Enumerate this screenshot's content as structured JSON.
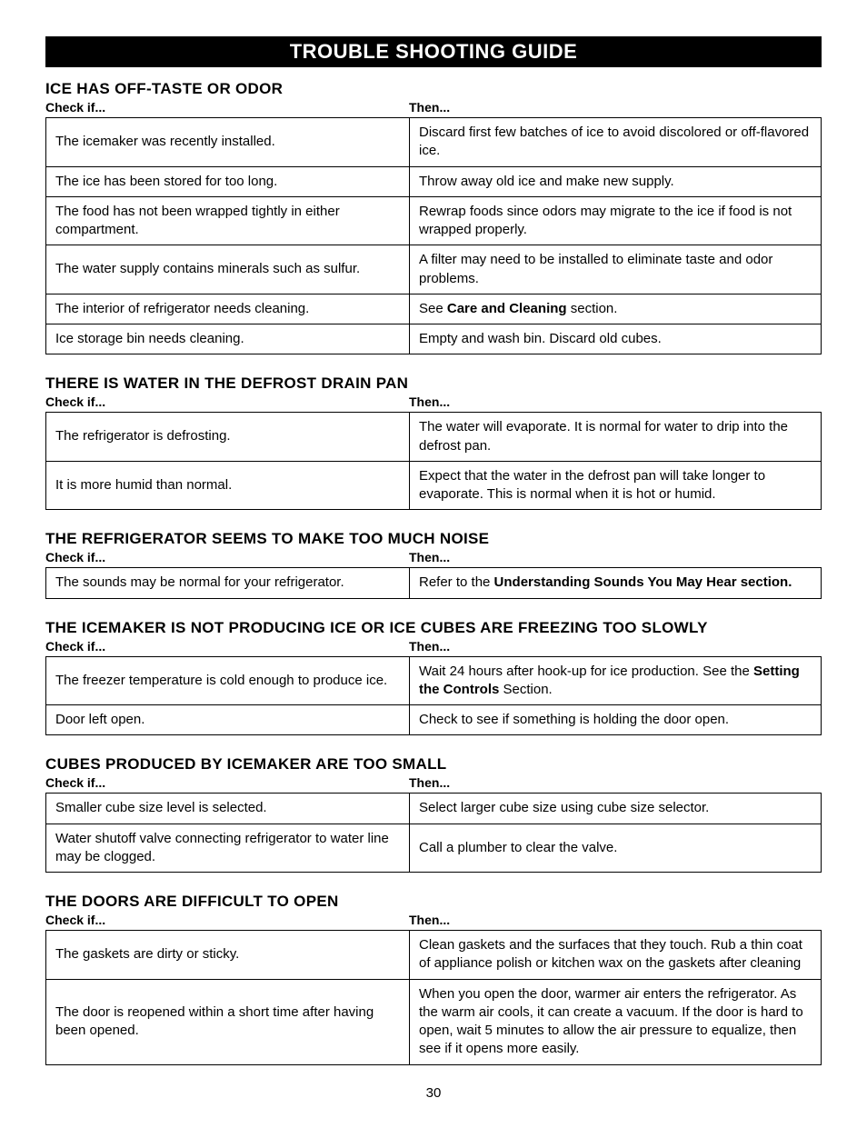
{
  "banner_title": "TROUBLE SHOOTING GUIDE",
  "col_header_left": "Check if...",
  "col_header_right": "Then...",
  "page_number": "30",
  "sections": [
    {
      "title": "ICE HAS OFF-TASTE OR ODOR",
      "rows": [
        {
          "check": "The icemaker was recently installed.",
          "then": "Discard first few batches of ice to avoid discolored or off-flavored ice."
        },
        {
          "check": "The ice has been stored for too long.",
          "then": "Throw away old ice and make new supply."
        },
        {
          "check": "The food has not been wrapped tightly in either compartment.",
          "then": "Rewrap foods since odors may migrate to the ice if food is not wrapped properly."
        },
        {
          "check": "The water supply contains minerals such as sulfur.",
          "then": "A filter may need to be installed to eliminate taste and odor problems."
        },
        {
          "check": "The interior of refrigerator needs cleaning.",
          "then_html": "See <b>Care and Cleaning</b> section."
        },
        {
          "check": "Ice storage bin needs cleaning.",
          "then": "Empty and wash bin. Discard old cubes."
        }
      ]
    },
    {
      "title": "THERE IS WATER IN THE DEFROST DRAIN PAN",
      "rows": [
        {
          "check": "The refrigerator is defrosting.",
          "then": "The water will evaporate. It is normal for water to drip into the defrost pan."
        },
        {
          "check": "It is more humid than normal.",
          "then": "Expect that the water in the defrost pan will take longer to evaporate. This is normal when it is hot or humid."
        }
      ]
    },
    {
      "title": "THE REFRIGERATOR SEEMS TO MAKE TOO MUCH NOISE",
      "rows": [
        {
          "check": "The sounds may be normal for your refrigerator.",
          "then_html": "Refer to the <b>Understanding Sounds You May Hear section.</b>"
        }
      ]
    },
    {
      "title": "THE ICEMAKER IS NOT PRODUCING ICE OR ICE CUBES ARE FREEZING TOO SLOWLY",
      "rows": [
        {
          "check": "The freezer temperature is cold enough to produce ice.",
          "then_html": "Wait 24 hours after hook-up for ice production. See the <b>Setting the Controls</b> Section."
        },
        {
          "check": "Door left open.",
          "then": "Check to see if something is holding the door open."
        }
      ]
    },
    {
      "title": "CUBES PRODUCED BY ICEMAKER ARE TOO SMALL",
      "rows": [
        {
          "check": "Smaller cube size level is selected.",
          "then": "Select larger cube size using cube size selector."
        },
        {
          "check": "Water shutoff valve connecting refrigerator to water line may be clogged.",
          "then": "Call a plumber to clear the valve."
        }
      ]
    },
    {
      "title": "THE DOORS ARE DIFFICULT TO OPEN",
      "rows": [
        {
          "check": "The gaskets are dirty or sticky.",
          "then": "Clean gaskets and the surfaces that they touch. Rub a thin coat of appliance polish or kitchen wax on the gaskets after cleaning"
        },
        {
          "check": "The door is reopened within a short time after having been opened.",
          "then": "When you open the door, warmer air enters the refrigerator. As the warm air cools, it can create a vacuum. If the door is hard to open, wait 5 minutes to allow the air pressure to equalize, then see if it opens more easily."
        }
      ]
    }
  ]
}
